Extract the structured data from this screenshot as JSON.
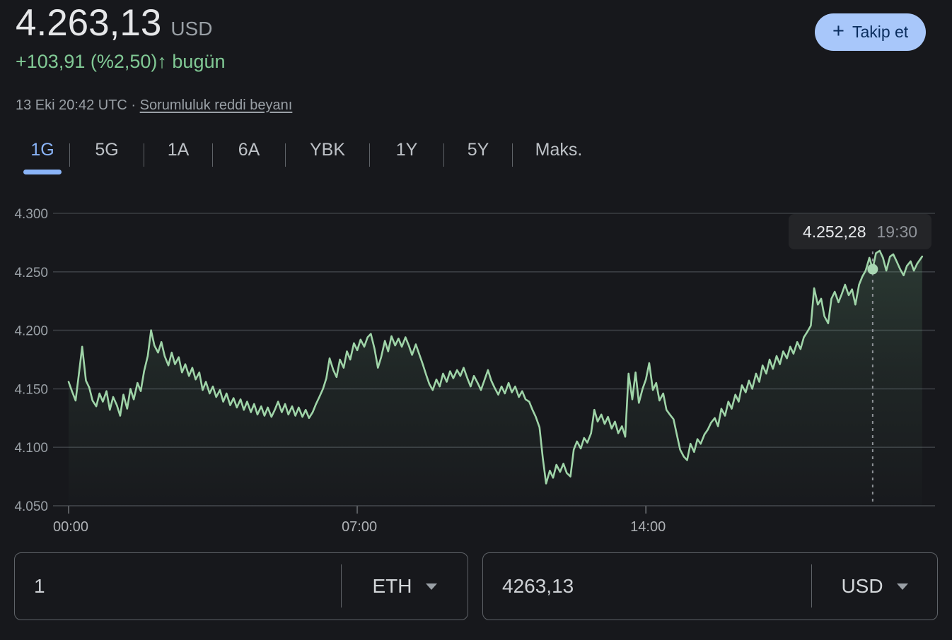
{
  "header": {
    "price": "4.263,13",
    "currency": "USD",
    "change": "+103,91 (%2,50)",
    "arrow": "↑",
    "change_period": "bugün",
    "timestamp": "13 Eki 20:42 UTC",
    "separator": "·",
    "disclaimer_link": "Sorumluluk reddi beyanı",
    "follow_button": {
      "icon": "+",
      "label": "Takip et"
    }
  },
  "tabs": [
    {
      "label": "1G",
      "active": true
    },
    {
      "label": "5G",
      "active": false
    },
    {
      "label": "1A",
      "active": false
    },
    {
      "label": "6A",
      "active": false
    },
    {
      "label": "YBK",
      "active": false
    },
    {
      "label": "1Y",
      "active": false
    },
    {
      "label": "5Y",
      "active": false
    },
    {
      "label": "Maks.",
      "active": false
    }
  ],
  "chart_data": {
    "type": "line",
    "title": "ETH / USD intraday price (1G)",
    "x_unit": "hours",
    "x_range": [
      0,
      20.7
    ],
    "y_range": [
      4050,
      4300
    ],
    "grid": true,
    "yticks": [
      {
        "value": 4300,
        "label": "4.300"
      },
      {
        "value": 4250,
        "label": "4.250"
      },
      {
        "value": 4200,
        "label": "4.200"
      },
      {
        "value": 4150,
        "label": "4.150"
      },
      {
        "value": 4100,
        "label": "4.100"
      },
      {
        "value": 4050,
        "label": "4.050"
      }
    ],
    "xticks": [
      {
        "value": 0,
        "label": "00:00"
      },
      {
        "value": 7,
        "label": "07:00"
      },
      {
        "value": 14,
        "label": "14:00"
      }
    ],
    "line_color": "#9fd4a8",
    "fill_color": "#81c995",
    "crosshair": {
      "time": 19.5,
      "value": 4252.28,
      "price_label": "4.252,28",
      "time_label": "19:30"
    },
    "series": [
      {
        "name": "ETH/USD",
        "points": [
          [
            0,
            4156
          ],
          [
            0.08,
            4148
          ],
          [
            0.17,
            4140
          ],
          [
            0.25,
            4163
          ],
          [
            0.33,
            4186
          ],
          [
            0.42,
            4157
          ],
          [
            0.5,
            4151
          ],
          [
            0.58,
            4140
          ],
          [
            0.67,
            4135
          ],
          [
            0.75,
            4146
          ],
          [
            0.83,
            4139
          ],
          [
            0.92,
            4148
          ],
          [
            1,
            4132
          ],
          [
            1.08,
            4143
          ],
          [
            1.17,
            4136
          ],
          [
            1.25,
            4127
          ],
          [
            1.33,
            4145
          ],
          [
            1.42,
            4133
          ],
          [
            1.5,
            4150
          ],
          [
            1.58,
            4141
          ],
          [
            1.67,
            4155
          ],
          [
            1.75,
            4148
          ],
          [
            1.83,
            4165
          ],
          [
            1.92,
            4178
          ],
          [
            2,
            4200
          ],
          [
            2.08,
            4187
          ],
          [
            2.17,
            4181
          ],
          [
            2.25,
            4190
          ],
          [
            2.33,
            4178
          ],
          [
            2.42,
            4170
          ],
          [
            2.5,
            4181
          ],
          [
            2.58,
            4171
          ],
          [
            2.67,
            4177
          ],
          [
            2.75,
            4164
          ],
          [
            2.83,
            4171
          ],
          [
            2.92,
            4161
          ],
          [
            3,
            4168
          ],
          [
            3.08,
            4158
          ],
          [
            3.17,
            4164
          ],
          [
            3.25,
            4149
          ],
          [
            3.33,
            4156
          ],
          [
            3.42,
            4146
          ],
          [
            3.5,
            4152
          ],
          [
            3.58,
            4143
          ],
          [
            3.67,
            4149
          ],
          [
            3.75,
            4139
          ],
          [
            3.83,
            4146
          ],
          [
            3.92,
            4136
          ],
          [
            4,
            4142
          ],
          [
            4.08,
            4134
          ],
          [
            4.17,
            4141
          ],
          [
            4.25,
            4132
          ],
          [
            4.33,
            4139
          ],
          [
            4.42,
            4130
          ],
          [
            4.5,
            4137
          ],
          [
            4.58,
            4128
          ],
          [
            4.67,
            4135
          ],
          [
            4.75,
            4127
          ],
          [
            4.83,
            4134
          ],
          [
            4.92,
            4126
          ],
          [
            5,
            4132
          ],
          [
            5.08,
            4139
          ],
          [
            5.17,
            4130
          ],
          [
            5.25,
            4137
          ],
          [
            5.33,
            4128
          ],
          [
            5.42,
            4135
          ],
          [
            5.5,
            4127
          ],
          [
            5.58,
            4134
          ],
          [
            5.67,
            4126
          ],
          [
            5.75,
            4132
          ],
          [
            5.83,
            4125
          ],
          [
            5.92,
            4130
          ],
          [
            6,
            4137
          ],
          [
            6.08,
            4143
          ],
          [
            6.17,
            4150
          ],
          [
            6.25,
            4159
          ],
          [
            6.33,
            4176
          ],
          [
            6.42,
            4166
          ],
          [
            6.5,
            4160
          ],
          [
            6.58,
            4175
          ],
          [
            6.67,
            4168
          ],
          [
            6.75,
            4182
          ],
          [
            6.83,
            4175
          ],
          [
            6.92,
            4189
          ],
          [
            7,
            4183
          ],
          [
            7.08,
            4192
          ],
          [
            7.17,
            4186
          ],
          [
            7.25,
            4194
          ],
          [
            7.33,
            4197
          ],
          [
            7.42,
            4184
          ],
          [
            7.5,
            4168
          ],
          [
            7.58,
            4177
          ],
          [
            7.67,
            4191
          ],
          [
            7.75,
            4182
          ],
          [
            7.83,
            4195
          ],
          [
            7.92,
            4187
          ],
          [
            8,
            4193
          ],
          [
            8.08,
            4186
          ],
          [
            8.17,
            4194
          ],
          [
            8.25,
            4187
          ],
          [
            8.33,
            4179
          ],
          [
            8.42,
            4188
          ],
          [
            8.5,
            4180
          ],
          [
            8.58,
            4172
          ],
          [
            8.67,
            4162
          ],
          [
            8.75,
            4154
          ],
          [
            8.83,
            4149
          ],
          [
            8.92,
            4158
          ],
          [
            9,
            4152
          ],
          [
            9.08,
            4163
          ],
          [
            9.17,
            4156
          ],
          [
            9.25,
            4165
          ],
          [
            9.33,
            4159
          ],
          [
            9.42,
            4166
          ],
          [
            9.5,
            4161
          ],
          [
            9.58,
            4168
          ],
          [
            9.67,
            4159
          ],
          [
            9.75,
            4152
          ],
          [
            9.83,
            4161
          ],
          [
            9.92,
            4155
          ],
          [
            10,
            4149
          ],
          [
            10.08,
            4157
          ],
          [
            10.17,
            4166
          ],
          [
            10.25,
            4157
          ],
          [
            10.33,
            4151
          ],
          [
            10.42,
            4145
          ],
          [
            10.5,
            4152
          ],
          [
            10.58,
            4146
          ],
          [
            10.67,
            4155
          ],
          [
            10.75,
            4147
          ],
          [
            10.83,
            4152
          ],
          [
            10.92,
            4143
          ],
          [
            11,
            4148
          ],
          [
            11.08,
            4141
          ],
          [
            11.17,
            4139
          ],
          [
            11.25,
            4132
          ],
          [
            11.33,
            4126
          ],
          [
            11.42,
            4117
          ],
          [
            11.5,
            4091
          ],
          [
            11.58,
            4069
          ],
          [
            11.67,
            4080
          ],
          [
            11.75,
            4074
          ],
          [
            11.83,
            4085
          ],
          [
            11.92,
            4079
          ],
          [
            12,
            4086
          ],
          [
            12.08,
            4078
          ],
          [
            12.17,
            4075
          ],
          [
            12.25,
            4098
          ],
          [
            12.33,
            4105
          ],
          [
            12.42,
            4099
          ],
          [
            12.5,
            4108
          ],
          [
            12.58,
            4104
          ],
          [
            12.67,
            4112
          ],
          [
            12.75,
            4132
          ],
          [
            12.83,
            4122
          ],
          [
            12.92,
            4128
          ],
          [
            13,
            4120
          ],
          [
            13.08,
            4126
          ],
          [
            13.17,
            4116
          ],
          [
            13.25,
            4122
          ],
          [
            13.33,
            4112
          ],
          [
            13.42,
            4118
          ],
          [
            13.5,
            4109
          ],
          [
            13.58,
            4163
          ],
          [
            13.67,
            4141
          ],
          [
            13.75,
            4164
          ],
          [
            13.83,
            4138
          ],
          [
            13.92,
            4150
          ],
          [
            14,
            4158
          ],
          [
            14.08,
            4172
          ],
          [
            14.17,
            4149
          ],
          [
            14.25,
            4155
          ],
          [
            14.33,
            4140
          ],
          [
            14.42,
            4146
          ],
          [
            14.5,
            4132
          ],
          [
            14.58,
            4128
          ],
          [
            14.67,
            4124
          ],
          [
            14.75,
            4111
          ],
          [
            14.83,
            4098
          ],
          [
            14.92,
            4092
          ],
          [
            15,
            4089
          ],
          [
            15.08,
            4103
          ],
          [
            15.17,
            4096
          ],
          [
            15.25,
            4107
          ],
          [
            15.33,
            4103
          ],
          [
            15.42,
            4111
          ],
          [
            15.5,
            4115
          ],
          [
            15.58,
            4121
          ],
          [
            15.67,
            4125
          ],
          [
            15.75,
            4118
          ],
          [
            15.83,
            4133
          ],
          [
            15.92,
            4127
          ],
          [
            16,
            4139
          ],
          [
            16.08,
            4133
          ],
          [
            16.17,
            4145
          ],
          [
            16.25,
            4139
          ],
          [
            16.33,
            4153
          ],
          [
            16.42,
            4147
          ],
          [
            16.5,
            4157
          ],
          [
            16.58,
            4150
          ],
          [
            16.67,
            4163
          ],
          [
            16.75,
            4156
          ],
          [
            16.83,
            4170
          ],
          [
            16.92,
            4163
          ],
          [
            17,
            4175
          ],
          [
            17.08,
            4167
          ],
          [
            17.17,
            4178
          ],
          [
            17.25,
            4171
          ],
          [
            17.33,
            4182
          ],
          [
            17.42,
            4176
          ],
          [
            17.5,
            4186
          ],
          [
            17.58,
            4180
          ],
          [
            17.67,
            4190
          ],
          [
            17.75,
            4184
          ],
          [
            17.83,
            4194
          ],
          [
            17.92,
            4199
          ],
          [
            18,
            4204
          ],
          [
            18.08,
            4236
          ],
          [
            18.17,
            4222
          ],
          [
            18.25,
            4227
          ],
          [
            18.33,
            4212
          ],
          [
            18.42,
            4206
          ],
          [
            18.5,
            4227
          ],
          [
            18.58,
            4233
          ],
          [
            18.67,
            4224
          ],
          [
            18.75,
            4231
          ],
          [
            18.83,
            4239
          ],
          [
            18.92,
            4230
          ],
          [
            19,
            4235
          ],
          [
            19.08,
            4222
          ],
          [
            19.17,
            4239
          ],
          [
            19.25,
            4246
          ],
          [
            19.33,
            4251
          ],
          [
            19.42,
            4262
          ],
          [
            19.5,
            4252.28
          ],
          [
            19.58,
            4266
          ],
          [
            19.67,
            4268
          ],
          [
            19.75,
            4262
          ],
          [
            19.83,
            4251
          ],
          [
            19.92,
            4263
          ],
          [
            20,
            4265
          ],
          [
            20.08,
            4259
          ],
          [
            20.17,
            4252
          ],
          [
            20.25,
            4247
          ],
          [
            20.33,
            4255
          ],
          [
            20.42,
            4259
          ],
          [
            20.5,
            4251
          ],
          [
            20.58,
            4257
          ],
          [
            20.7,
            4263.13
          ]
        ]
      }
    ]
  },
  "converter": {
    "from": {
      "amount": "1",
      "currency": "ETH"
    },
    "to": {
      "amount": "4263,13",
      "currency": "USD"
    }
  },
  "colors": {
    "background": "#17181c",
    "positive_green": "#81c995",
    "line_green": "#9fd4a8",
    "accent_blue": "#8ab4f8",
    "follow_button_bg": "#a8c7fa",
    "gridline": "#3a3d42",
    "muted_text": "#9aa0a6",
    "border": "#5f6368"
  }
}
